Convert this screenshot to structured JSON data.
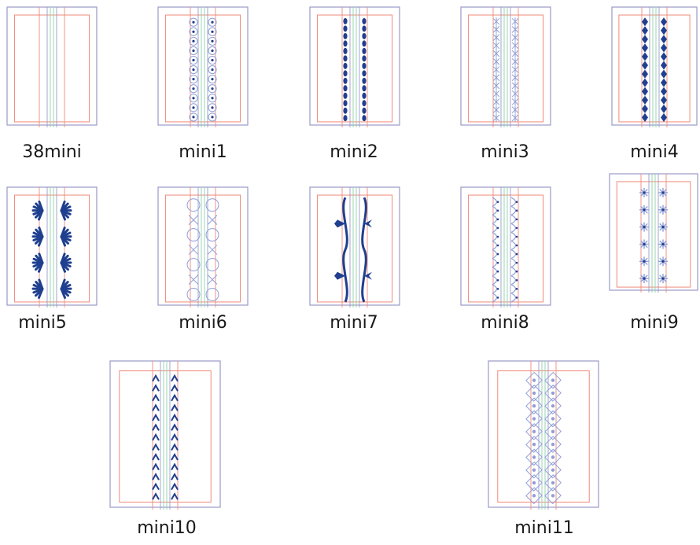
{
  "colors": {
    "outer_frame": "#9a9ac8",
    "inner_frame": "#f08a7a",
    "guide_line": "#8fd0a8",
    "motif_dark": "#1f3f8f",
    "motif_light": "#8fa0d8"
  },
  "tiles": [
    {
      "label": "38mini",
      "motif": "none"
    },
    {
      "label": "mini1",
      "motif": "lace-circles"
    },
    {
      "label": "mini2",
      "motif": "chain-beads"
    },
    {
      "label": "mini3",
      "motif": "cross-stitch"
    },
    {
      "label": "mini4",
      "motif": "diamonds"
    },
    {
      "label": "mini5",
      "motif": "fans"
    },
    {
      "label": "mini6",
      "motif": "circle-x-chain"
    },
    {
      "label": "mini7",
      "motif": "wavy-scroll"
    },
    {
      "label": "mini8",
      "motif": "scallop-lace"
    },
    {
      "label": "mini9",
      "motif": "snowflake-stars"
    },
    {
      "label": "mini10",
      "motif": "arrow-stitch"
    },
    {
      "label": "mini11",
      "motif": "lattice-stars"
    }
  ]
}
